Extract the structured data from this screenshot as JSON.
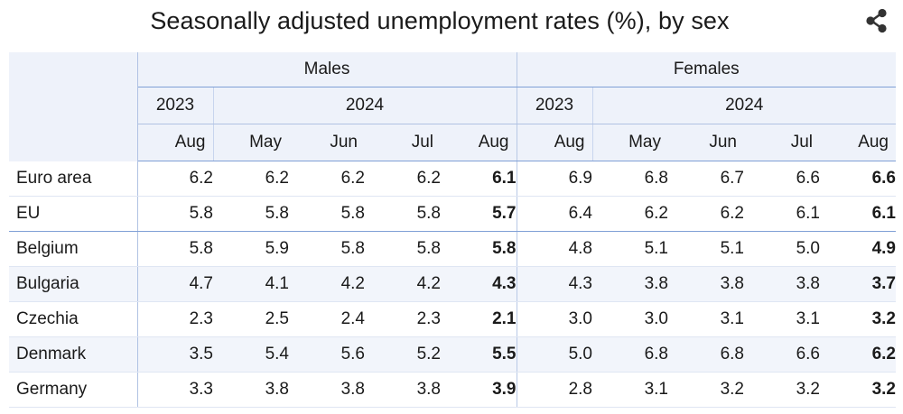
{
  "chart_data": {
    "type": "table",
    "title": "Seasonally adjusted unemployment rates (%), by sex",
    "groups": [
      {
        "label": "Males",
        "years": [
          {
            "label": "2023",
            "months": [
              "Aug"
            ]
          },
          {
            "label": "2024",
            "months": [
              "May",
              "Jun",
              "Jul",
              "Aug"
            ]
          }
        ]
      },
      {
        "label": "Females",
        "years": [
          {
            "label": "2023",
            "months": [
              "Aug"
            ]
          },
          {
            "label": "2024",
            "months": [
              "May",
              "Jun",
              "Jul",
              "Aug"
            ]
          }
        ]
      }
    ],
    "rows": [
      {
        "label": "Euro area",
        "values": [
          "6.2",
          "6.2",
          "6.2",
          "6.2",
          "6.1",
          "6.9",
          "6.8",
          "6.7",
          "6.6",
          "6.6"
        ]
      },
      {
        "label": "EU",
        "values": [
          "5.8",
          "5.8",
          "5.8",
          "5.8",
          "5.7",
          "6.4",
          "6.2",
          "6.2",
          "6.1",
          "6.1"
        ]
      },
      {
        "label": "Belgium",
        "values": [
          "5.8",
          "5.9",
          "5.8",
          "5.8",
          "5.8",
          "4.8",
          "5.1",
          "5.1",
          "5.0",
          "4.9"
        ]
      },
      {
        "label": "Bulgaria",
        "values": [
          "4.7",
          "4.1",
          "4.2",
          "4.2",
          "4.3",
          "4.3",
          "3.8",
          "3.8",
          "3.8",
          "3.7"
        ]
      },
      {
        "label": "Czechia",
        "values": [
          "2.3",
          "2.5",
          "2.4",
          "2.3",
          "2.1",
          "3.0",
          "3.0",
          "3.1",
          "3.1",
          "3.2"
        ]
      },
      {
        "label": "Denmark",
        "values": [
          "3.5",
          "5.4",
          "5.6",
          "5.2",
          "5.5",
          "5.0",
          "6.8",
          "6.8",
          "6.6",
          "6.2"
        ]
      },
      {
        "label": "Germany",
        "values": [
          "3.3",
          "3.8",
          "3.8",
          "3.8",
          "3.9",
          "2.8",
          "3.1",
          "3.2",
          "3.2",
          "3.2"
        ]
      }
    ]
  },
  "icons": {
    "share": "share-icon"
  },
  "colors": {
    "header_bg": "#eef2fa",
    "alt_row_bg": "#f2f5fb",
    "rule": "#7f9fd6"
  }
}
